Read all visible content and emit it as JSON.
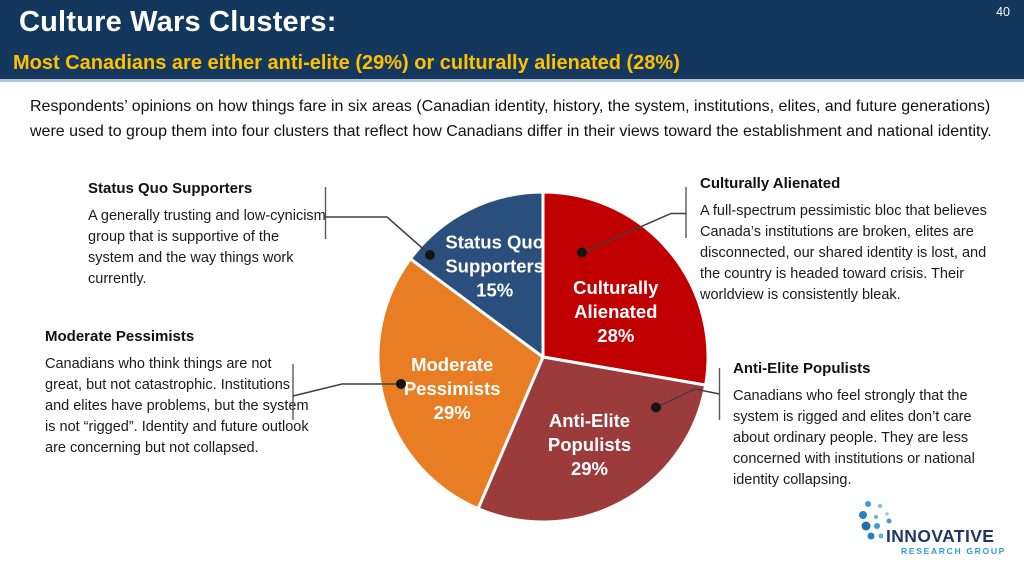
{
  "page_number": "40",
  "header": {
    "title": "Culture Wars Clusters:",
    "subtitle": "Most Canadians are either anti-elite (29%) or culturally alienated (28%)"
  },
  "intro": "Respondents’ opinions on how things fare in six areas (Canadian identity, history, the system, institutions, elites, and future generations) were used to group them into four clusters that reflect how Canadians differ in their views toward the establishment and national identity.",
  "chart_data": {
    "type": "pie",
    "categories": [
      "Culturally Alienated",
      "Anti-Elite Populists",
      "Moderate Pessimists",
      "Status Quo Supporters"
    ],
    "values": [
      28,
      29,
      29,
      15
    ],
    "unit": "%",
    "colors": [
      "#C00000",
      "#9B3B3B",
      "#E87D23",
      "#2B4F7C"
    ],
    "start_angle_deg": 0,
    "direction": "clockwise",
    "slice_labels": [
      {
        "lines": [
          "Culturally",
          "Alienated"
        ],
        "pct": "28%"
      },
      {
        "lines": [
          "Anti-Elite",
          "Populists"
        ],
        "pct": "29%"
      },
      {
        "lines": [
          "Moderate",
          "Pessimists"
        ],
        "pct": "29%"
      },
      {
        "lines": [
          "Status Quo",
          "Supporters"
        ],
        "pct": "15%"
      }
    ]
  },
  "callouts": {
    "status_quo": {
      "title": "Status Quo Supporters",
      "body": "A generally trusting and low-cynicism group that is supportive of the system and the way things work currently."
    },
    "culturally_alienated": {
      "title": "Culturally Alienated",
      "body": "A full-spectrum pessimistic bloc that believes Canada’s institutions are broken, elites are disconnected, our shared identity is lost, and the country is headed toward crisis. Their worldview is consistently bleak."
    },
    "moderate_pessimists": {
      "title": "Moderate Pessimists",
      "body": "Canadians who think things are not great, but not catastrophic. Institutions and elites have problems, but the system is not “rigged”. Identity and future outlook are concerning but not collapsed."
    },
    "anti_elite": {
      "title": "Anti-Elite Populists",
      "body": "Canadians who feel strongly that the system is rigged and elites don’t care about ordinary people. They are less concerned with institutions or national identity collapsing."
    }
  },
  "logo": {
    "name": "INNOVATIVE",
    "subname": "RESEARCH GROUP"
  }
}
